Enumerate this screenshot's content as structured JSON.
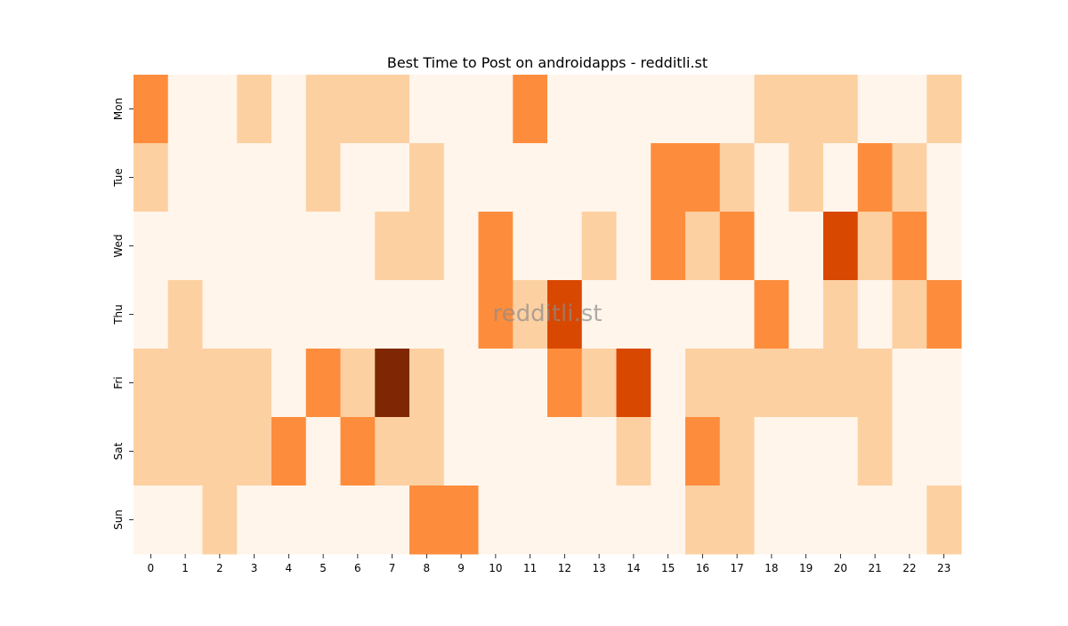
{
  "chart_data": {
    "type": "heatmap",
    "title": "Best Time to Post on androidapps - redditli.st",
    "watermark": "redditli.st",
    "xlabel": "",
    "ylabel": "",
    "x_categories": [
      "0",
      "1",
      "2",
      "3",
      "4",
      "5",
      "6",
      "7",
      "8",
      "9",
      "10",
      "11",
      "12",
      "13",
      "14",
      "15",
      "16",
      "17",
      "18",
      "19",
      "20",
      "21",
      "22",
      "23"
    ],
    "y_categories": [
      "Mon",
      "Tue",
      "Wed",
      "Thu",
      "Fri",
      "Sat",
      "Sun"
    ],
    "values": [
      [
        2,
        0,
        0,
        1,
        0,
        1,
        1,
        1,
        0,
        0,
        0,
        2,
        0,
        0,
        0,
        0,
        0,
        0,
        1,
        1,
        1,
        0,
        0,
        1
      ],
      [
        1,
        0,
        0,
        0,
        0,
        1,
        0,
        0,
        1,
        0,
        0,
        0,
        0,
        0,
        0,
        2,
        2,
        1,
        0,
        1,
        0,
        2,
        1,
        0
      ],
      [
        0,
        0,
        0,
        0,
        0,
        0,
        0,
        1,
        1,
        0,
        2,
        0,
        0,
        1,
        0,
        2,
        1,
        2,
        0,
        0,
        3,
        1,
        2,
        0
      ],
      [
        0,
        1,
        0,
        0,
        0,
        0,
        0,
        0,
        0,
        0,
        2,
        1,
        3,
        0,
        0,
        0,
        0,
        0,
        2,
        0,
        1,
        0,
        1,
        2
      ],
      [
        1,
        1,
        1,
        1,
        0,
        2,
        1,
        4,
        1,
        0,
        0,
        0,
        2,
        1,
        3,
        0,
        1,
        1,
        1,
        1,
        1,
        1,
        0,
        0
      ],
      [
        1,
        1,
        1,
        1,
        2,
        0,
        2,
        1,
        1,
        0,
        0,
        0,
        0,
        0,
        1,
        0,
        2,
        1,
        0,
        0,
        0,
        1,
        0,
        0
      ],
      [
        0,
        0,
        1,
        0,
        0,
        0,
        0,
        0,
        2,
        2,
        0,
        0,
        0,
        0,
        0,
        0,
        1,
        1,
        0,
        0,
        0,
        0,
        0,
        1
      ]
    ],
    "value_range": [
      0,
      4
    ],
    "colormap": [
      "#fff5eb",
      "#fdd0a2",
      "#fd8d3c",
      "#d94801",
      "#7f2704"
    ],
    "colorbar": false,
    "grid": false
  }
}
